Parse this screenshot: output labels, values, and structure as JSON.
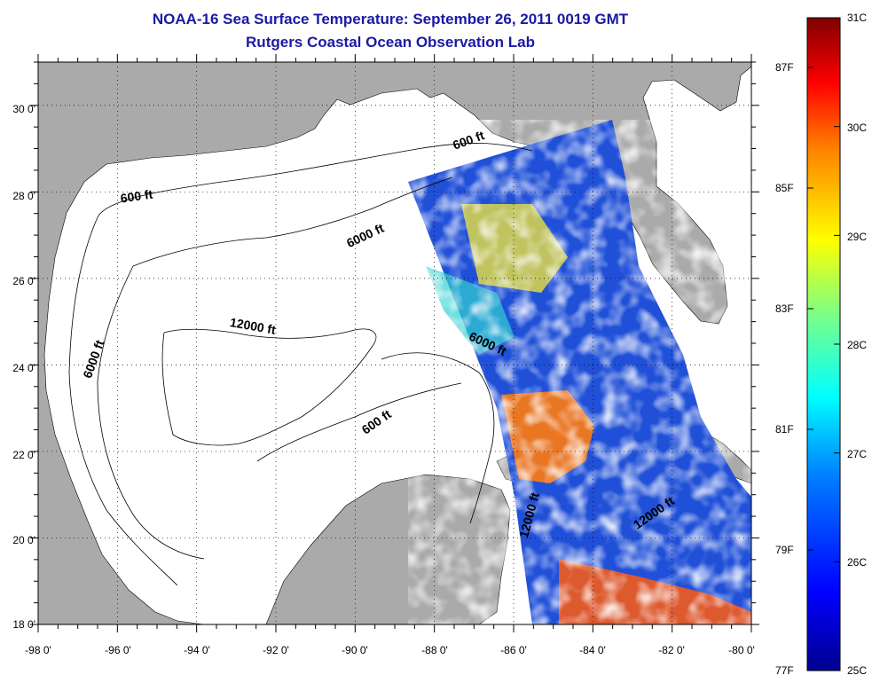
{
  "title": {
    "line1": "NOAA-16 Sea Surface Temperature:  September 26, 2011 0019 GMT",
    "line2": "Rutgers Coastal Ocean Observation Lab"
  },
  "map": {
    "lon_range": [
      -98,
      -80
    ],
    "lat_range": [
      18,
      31
    ],
    "x_ticks": [
      "-98 0'",
      "-96 0'",
      "-94 0'",
      "-92 0'",
      "-90 0'",
      "-88 0'",
      "-86 0'",
      "-84 0'",
      "-82 0'",
      "-80 0'"
    ],
    "y_ticks": [
      "30 0'",
      "28 0'",
      "26 0'",
      "24 0'",
      "22 0'",
      "20 0'",
      "18 0'"
    ],
    "land_color": "#aaaaaa",
    "grid": "dotted",
    "contour_labels": [
      {
        "text": "600 ft",
        "lon": -87.1,
        "lat": 29.1,
        "angle": -20
      },
      {
        "text": "600 ft",
        "lon": -95.5,
        "lat": 27.8,
        "angle": -8
      },
      {
        "text": "6000 ft",
        "lon": -89.7,
        "lat": 26.9,
        "angle": -25
      },
      {
        "text": "6000 ft",
        "lon": -96.5,
        "lat": 24.1,
        "angle": -70
      },
      {
        "text": "12000 ft",
        "lon": -92.6,
        "lat": 24.8,
        "angle": 10
      },
      {
        "text": "6000 ft",
        "lon": -86.7,
        "lat": 24.4,
        "angle": 25
      },
      {
        "text": "600 ft",
        "lon": -89.4,
        "lat": 22.6,
        "angle": -35
      },
      {
        "text": "12000 ft",
        "lon": -85.5,
        "lat": 20.5,
        "angle": -75
      },
      {
        "text": "12000 ft",
        "lon": -82.4,
        "lat": 20.5,
        "angle": -35
      }
    ]
  },
  "colorbar": {
    "celsius": [
      "31C",
      "30C",
      "29C",
      "28C",
      "27C",
      "26C",
      "25C"
    ],
    "fahrenheit": [
      "87F",
      "85F",
      "83F",
      "81F",
      "79F",
      "77F"
    ]
  },
  "colors": {
    "title": "#1a1aa6",
    "scale": [
      "#00008f",
      "#0000ff",
      "#0080ff",
      "#00ffff",
      "#80ff80",
      "#ffff00",
      "#ff8000",
      "#ff0000",
      "#800000"
    ]
  }
}
